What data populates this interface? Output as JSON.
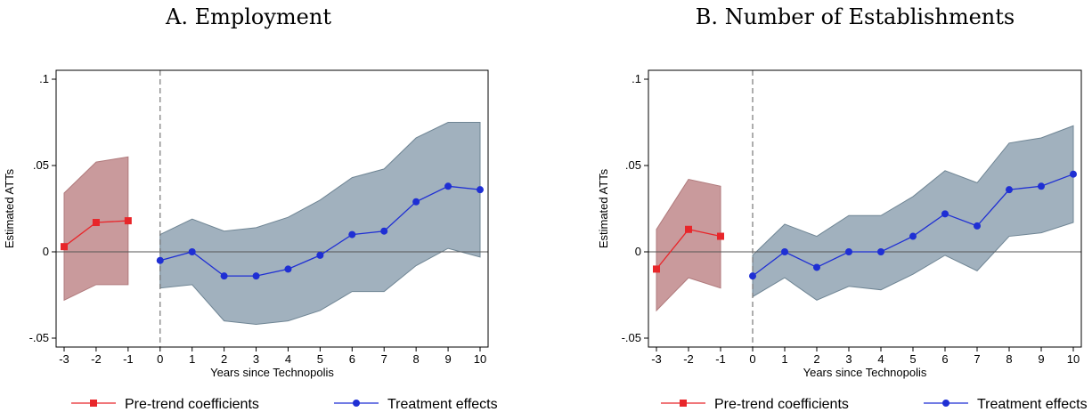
{
  "chart_data": [
    {
      "type": "line",
      "title": "A. Employment",
      "xlabel": "Years since Technopolis",
      "ylabel": "Estimated ATTs",
      "xlim": [
        -3,
        10
      ],
      "ylim": [
        -0.05,
        0.1
      ],
      "x_ticks": [
        "-3",
        "-2",
        "-1",
        "0",
        "1",
        "2",
        "3",
        "4",
        "5",
        "6",
        "7",
        "8",
        "9",
        "10"
      ],
      "y_ticks": [
        {
          "value": -0.05,
          "label": "-.05"
        },
        {
          "value": 0,
          "label": "0"
        },
        {
          "value": 0.05,
          "label": ".05"
        },
        {
          "value": 0.1,
          "label": ".1"
        }
      ],
      "reference_lines": {
        "x": 0,
        "y": 0
      },
      "legend_position": "bottom",
      "series": [
        {
          "name": "Pre-trend coefficients",
          "color": "#e8262a",
          "marker": "square",
          "band_color": "#c99a9c",
          "x": [
            -3,
            -2,
            -1
          ],
          "values": [
            0.003,
            0.017,
            0.018
          ],
          "ci_low": [
            -0.028,
            -0.019,
            -0.019
          ],
          "ci_high": [
            0.034,
            0.052,
            0.055
          ]
        },
        {
          "name": "Treatment effects",
          "color": "#1f2fd4",
          "marker": "circle",
          "band_color": "#a1b1be",
          "x": [
            0,
            1,
            2,
            3,
            4,
            5,
            6,
            7,
            8,
            9,
            10
          ],
          "values": [
            -0.005,
            0.0,
            -0.014,
            -0.014,
            -0.01,
            -0.002,
            0.01,
            0.012,
            0.029,
            0.038,
            0.036
          ],
          "ci_low": [
            -0.021,
            -0.019,
            -0.04,
            -0.042,
            -0.04,
            -0.034,
            -0.023,
            -0.023,
            -0.008,
            0.002,
            -0.003
          ],
          "ci_high": [
            0.01,
            0.019,
            0.012,
            0.014,
            0.02,
            0.03,
            0.043,
            0.048,
            0.066,
            0.075,
            0.075
          ]
        }
      ]
    },
    {
      "type": "line",
      "title": "B. Number of Establishments",
      "xlabel": "Years since Technopolis",
      "ylabel": "Estimated ATTs",
      "xlim": [
        -3,
        10
      ],
      "ylim": [
        -0.05,
        0.1
      ],
      "x_ticks": [
        "-3",
        "-2",
        "-1",
        "0",
        "1",
        "2",
        "3",
        "4",
        "5",
        "6",
        "7",
        "8",
        "9",
        "10"
      ],
      "y_ticks": [
        {
          "value": -0.05,
          "label": "-.05"
        },
        {
          "value": 0,
          "label": "0"
        },
        {
          "value": 0.05,
          "label": ".05"
        },
        {
          "value": 0.1,
          "label": ".1"
        }
      ],
      "reference_lines": {
        "x": 0,
        "y": 0
      },
      "legend_position": "bottom",
      "series": [
        {
          "name": "Pre-trend coefficients",
          "color": "#e8262a",
          "marker": "square",
          "band_color": "#c99a9c",
          "x": [
            -3,
            -2,
            -1
          ],
          "values": [
            -0.01,
            0.013,
            0.009
          ],
          "ci_low": [
            -0.034,
            -0.015,
            -0.021
          ],
          "ci_high": [
            0.013,
            0.042,
            0.038
          ]
        },
        {
          "name": "Treatment effects",
          "color": "#1f2fd4",
          "marker": "circle",
          "band_color": "#a1b1be",
          "x": [
            0,
            1,
            2,
            3,
            4,
            5,
            6,
            7,
            8,
            9,
            10
          ],
          "values": [
            -0.014,
            0.0,
            -0.009,
            0.0,
            0.0,
            0.009,
            0.022,
            0.015,
            0.036,
            0.038,
            0.045
          ],
          "ci_low": [
            -0.026,
            -0.015,
            -0.028,
            -0.02,
            -0.022,
            -0.013,
            -0.002,
            -0.011,
            0.009,
            0.011,
            0.017
          ],
          "ci_high": [
            -0.002,
            0.016,
            0.009,
            0.021,
            0.021,
            0.032,
            0.047,
            0.04,
            0.063,
            0.066,
            0.073
          ]
        }
      ]
    }
  ]
}
